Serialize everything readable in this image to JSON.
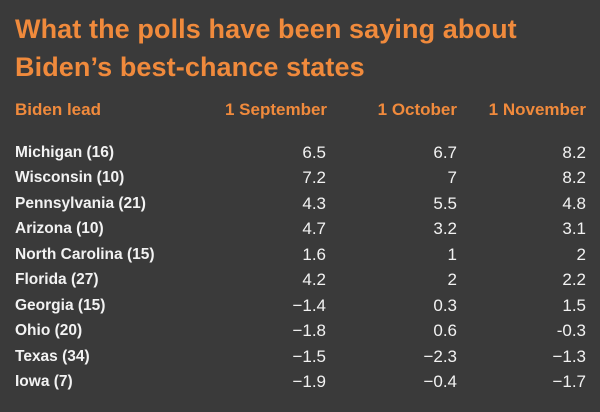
{
  "chart_data": {
    "type": "table",
    "title": "What the polls have been saying about Biden’s best-chance states",
    "columns": [
      "Biden lead",
      "1 September",
      "1 October",
      "1 November"
    ],
    "rows": [
      {
        "state": "Michigan (16)",
        "values": [
          "6.5",
          "6.7",
          "8.2"
        ]
      },
      {
        "state": "Wisconsin (10)",
        "values": [
          "7.2",
          "7",
          "8.2"
        ]
      },
      {
        "state": "Pennsylvania (21)",
        "values": [
          "4.3",
          "5.5",
          "4.8"
        ]
      },
      {
        "state": "Arizona (10)",
        "values": [
          "4.7",
          "3.2",
          "3.1"
        ]
      },
      {
        "state": "North Carolina (15)",
        "values": [
          "1.6",
          "1",
          "2"
        ]
      },
      {
        "state": "Florida (27)",
        "values": [
          "4.2",
          "2",
          "2.2"
        ]
      },
      {
        "state": "Georgia (15)",
        "values": [
          "−1.4",
          "0.3",
          "1.5"
        ]
      },
      {
        "state": "Ohio (20)",
        "values": [
          "−1.8",
          "0.6",
          "-0.3"
        ]
      },
      {
        "state": "Texas (34)",
        "values": [
          "−1.5",
          "−2.3",
          "−1.3"
        ]
      },
      {
        "state": "Iowa (7)",
        "values": [
          "−1.9",
          "−0.4",
          "−1.7"
        ]
      }
    ]
  },
  "colors": {
    "background": "#3a3a3a",
    "accent": "#f08a3c",
    "text": "#f2f2f2"
  }
}
